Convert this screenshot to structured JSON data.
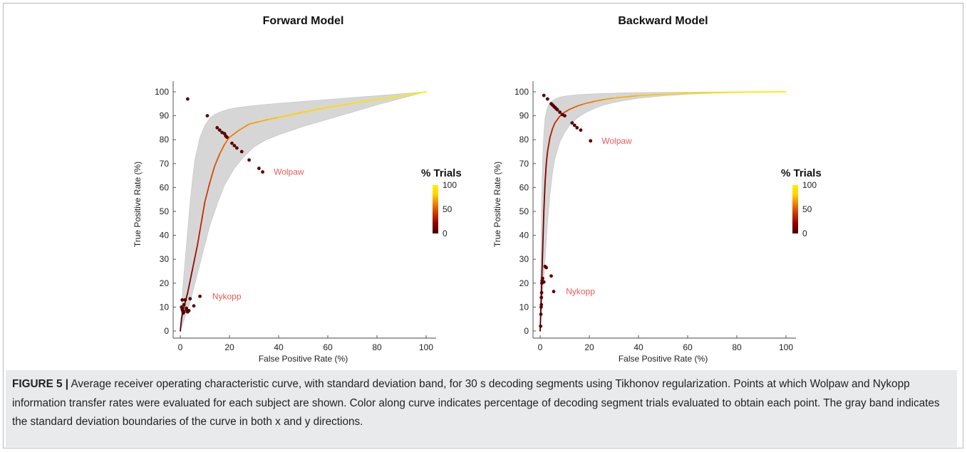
{
  "chart_data": [
    {
      "type": "line",
      "title": "Forward Model",
      "xlabel": "False Positive Rate (%)",
      "ylabel": "True Positive Rate (%)",
      "xlim": [
        0,
        100
      ],
      "ylim": [
        0,
        100
      ],
      "x_ticks": [
        "0",
        "20",
        "40",
        "60",
        "80",
        "100"
      ],
      "y_ticks": [
        "0",
        "10",
        "20",
        "30",
        "40",
        "50",
        "60",
        "70",
        "80",
        "90",
        "100"
      ],
      "grid": false,
      "colorbar": {
        "title": "% Trials",
        "ticks": [
          "0",
          "50",
          "100"
        ]
      },
      "curve": {
        "x": [
          0,
          0.5,
          1,
          2,
          3,
          4,
          5,
          6,
          7,
          8,
          9,
          10,
          12,
          14,
          16,
          18,
          20,
          24,
          28,
          32,
          36,
          40,
          50,
          60,
          70,
          80,
          90,
          100
        ],
        "y": [
          0,
          5,
          8,
          12,
          16,
          21,
          26,
          31,
          36,
          42,
          48,
          54,
          62,
          69,
          74,
          78,
          81,
          84,
          86.5,
          87.5,
          88.5,
          89.3,
          91.5,
          93.5,
          95.2,
          96.8,
          98.3,
          100
        ]
      },
      "band": {
        "upper_x": [
          0,
          0.5,
          1,
          2,
          3,
          4,
          5,
          6,
          8,
          10,
          12,
          14,
          16,
          18,
          20,
          24,
          28,
          32,
          40,
          50,
          60,
          70,
          80,
          90,
          100
        ],
        "upper_y": [
          0,
          10,
          18,
          30,
          42,
          54,
          64,
          72,
          81,
          86,
          89,
          90.5,
          91.5,
          92.2,
          92.8,
          93.5,
          94,
          94.5,
          95.2,
          96,
          96.8,
          97.6,
          98.4,
          99.2,
          100
        ],
        "lower_x": [
          0,
          1,
          2,
          3,
          4,
          5,
          6,
          8,
          10,
          12,
          15,
          18,
          22,
          26,
          30,
          35,
          40,
          50,
          60,
          70,
          80,
          90,
          100
        ],
        "lower_y": [
          0,
          3,
          6,
          9,
          12,
          16,
          20,
          28,
          36,
          44,
          53,
          61,
          68,
          73,
          77,
          80,
          82,
          85.5,
          88.5,
          91.5,
          94.5,
          97.3,
          100
        ]
      },
      "points_wolpaw": {
        "x": [
          3,
          11,
          15,
          16,
          17,
          18,
          18.5,
          19,
          21,
          22,
          23,
          25,
          28,
          32,
          33.5
        ],
        "y": [
          97,
          90,
          85,
          84,
          83,
          82.5,
          81.5,
          81,
          78.5,
          77.5,
          76.5,
          75,
          71.5,
          68,
          66.5
        ]
      },
      "points_nykopp": {
        "x": [
          0.5,
          0.8,
          1,
          1.2,
          1.5,
          2,
          2.5,
          3,
          3.5,
          4,
          5.5,
          8,
          0.8,
          1.5,
          2.5
        ],
        "y": [
          10,
          9,
          8.5,
          7.5,
          8,
          13,
          9,
          8,
          8.5,
          13.5,
          10.5,
          14.5,
          13,
          11,
          9.5
        ]
      },
      "annotations": [
        {
          "text": "Wolpaw",
          "x": 38,
          "y": 66.5
        },
        {
          "text": "Nykopp",
          "x": 13,
          "y": 14.5
        }
      ]
    },
    {
      "type": "line",
      "title": "Backward Model",
      "xlabel": "False Positive Rate (%)",
      "ylabel": "True Positive Rate (%)",
      "xlim": [
        0,
        100
      ],
      "ylim": [
        0,
        100
      ],
      "x_ticks": [
        "0",
        "20",
        "40",
        "60",
        "80",
        "100"
      ],
      "y_ticks": [
        "0",
        "10",
        "20",
        "30",
        "40",
        "50",
        "60",
        "70",
        "80",
        "90",
        "100"
      ],
      "grid": false,
      "colorbar": {
        "title": "% Trials",
        "ticks": [
          "0",
          "50",
          "100"
        ]
      },
      "curve": {
        "x": [
          0,
          0.5,
          1,
          1.5,
          2,
          2.5,
          3,
          4,
          5,
          6,
          8,
          10,
          12,
          15,
          18,
          22,
          26,
          30,
          40,
          50,
          60,
          70,
          80,
          90,
          100
        ],
        "y": [
          0,
          16,
          33,
          50,
          62,
          70,
          75,
          81,
          84.5,
          87,
          89.8,
          91.5,
          92.7,
          94,
          95,
          96,
          96.8,
          97.4,
          98.4,
          99,
          99.4,
          99.7,
          99.85,
          99.95,
          100
        ]
      },
      "band": {
        "upper_x": [
          0,
          0.3,
          0.6,
          1,
          1.5,
          2,
          3,
          4,
          6,
          8,
          10,
          14,
          18,
          25,
          35,
          50,
          70,
          100
        ],
        "upper_y": [
          0,
          30,
          55,
          72,
          83,
          89,
          93.5,
          95.5,
          97,
          97.8,
          98.2,
          98.7,
          99,
          99.3,
          99.6,
          99.8,
          99.9,
          100
        ],
        "lower_x": [
          0,
          1,
          2,
          3,
          4,
          5,
          6,
          8,
          10,
          12,
          15,
          18,
          22,
          26,
          30,
          35,
          40,
          50,
          60,
          70,
          80,
          90,
          100
        ],
        "lower_y": [
          0,
          15,
          30,
          45,
          57,
          66,
          72,
          79,
          83,
          86,
          89,
          91,
          93,
          94.5,
          95.5,
          96.5,
          97.3,
          98.3,
          99,
          99.4,
          99.7,
          99.9,
          100
        ]
      },
      "points_wolpaw": {
        "x": [
          1.5,
          3,
          4.5,
          5,
          5.5,
          6,
          6.5,
          7,
          8,
          9,
          10,
          13,
          14,
          15,
          16.5,
          20.5
        ],
        "y": [
          98.5,
          97,
          95,
          94.5,
          94,
          93.5,
          93,
          92.5,
          91.5,
          90.5,
          90,
          87,
          86,
          85,
          84,
          79.5
        ]
      },
      "points_nykopp": {
        "x": [
          0.2,
          0.3,
          0.4,
          0.5,
          0.5,
          0.6,
          0.7,
          0.8,
          1,
          1.5,
          2,
          2.5,
          4.5,
          5.5
        ],
        "y": [
          2,
          7,
          10,
          11,
          14,
          16,
          20,
          21,
          22,
          20.5,
          27,
          26.5,
          23,
          16.5
        ]
      },
      "annotations": [
        {
          "text": "Wolpaw",
          "x": 25,
          "y": 79.5
        },
        {
          "text": "Nykopp",
          "x": 10.5,
          "y": 16.5
        }
      ]
    }
  ],
  "caption": {
    "label": "FIGURE 5 |",
    "text": " Average receiver operating characteristic curve, with standard deviation band, for 30 s decoding segments using Tikhonov regularization. Points at which Wolpaw and Nykopp information transfer rates were evaluated for each subject are shown. Color along curve indicates percentage of decoding segment trials evaluated to obtain each point. The gray band indicates the standard deviation boundaries of the curve in both x and y directions."
  },
  "colors": {
    "band": "#d6d6d6",
    "point": "#5a0000",
    "annotation": "#ee5a5a",
    "colormap": [
      "#4a0000",
      "#8b0000",
      "#c83200",
      "#ee7a00",
      "#ffd200",
      "#fff000"
    ]
  }
}
